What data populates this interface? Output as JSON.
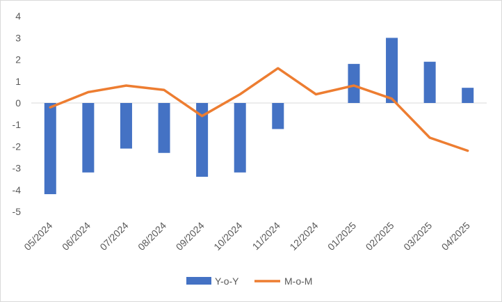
{
  "chart_data": {
    "type": "bar",
    "categories": [
      "05/2024",
      "06/2024",
      "07/2024",
      "08/2024",
      "09/2024",
      "10/2024",
      "11/2024",
      "12/2024",
      "01/2025",
      "02/2025",
      "03/2025",
      "04/2025"
    ],
    "series": [
      {
        "name": "Y-o-Y",
        "type": "bar",
        "color": "#4472C4",
        "values": [
          -4.2,
          -3.2,
          -2.1,
          -2.3,
          -3.4,
          -3.2,
          -1.2,
          0,
          1.8,
          3.0,
          1.9,
          0.7
        ]
      },
      {
        "name": "M-o-M",
        "type": "line",
        "color": "#ED7D31",
        "values": [
          -0.2,
          0.5,
          0.8,
          0.6,
          -0.6,
          0.4,
          1.6,
          0.4,
          0.8,
          0.2,
          -1.6,
          -2.2
        ]
      }
    ],
    "yticks": [
      4,
      3,
      2,
      1,
      0,
      -1,
      -2,
      -3,
      -4,
      -5
    ],
    "ylim": [
      -5,
      4
    ],
    "xlabel": "",
    "ylabel": "",
    "grid": false,
    "legend_position": "bottom"
  }
}
